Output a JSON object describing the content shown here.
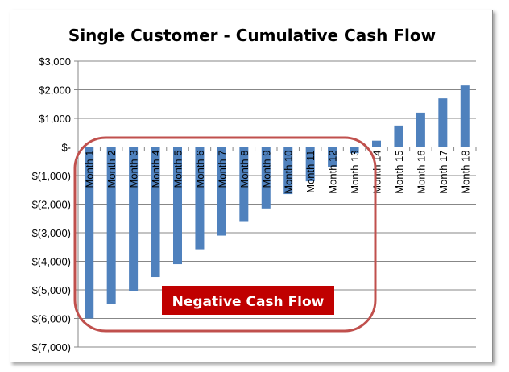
{
  "chart_data": {
    "type": "bar",
    "title": "Single Customer - Cumulative Cash Flow",
    "xlabel": "",
    "ylabel": "",
    "categories": [
      "Month 1",
      "Month 2",
      "Month 3",
      "Month 4",
      "Month 5",
      "Month 6",
      "Month 7",
      "Month 8",
      "Month 9",
      "Month 10",
      "Month 11",
      "Month 12",
      "Month 13",
      "Month 14",
      "Month 15",
      "Month 16",
      "Month 17",
      "Month 18"
    ],
    "values": [
      -6000,
      -5500,
      -5050,
      -4550,
      -4100,
      -3580,
      -3100,
      -2620,
      -2150,
      -1650,
      -1200,
      -700,
      -220,
      220,
      750,
      1200,
      1700,
      2150
    ],
    "ylim": [
      -7000,
      3000
    ],
    "yticks": [
      3000,
      2000,
      1000,
      0,
      -1000,
      -2000,
      -3000,
      -4000,
      -5000,
      -6000,
      -7000
    ],
    "ytick_labels": [
      "$3,000",
      "$2,000",
      "$1,000",
      "$-",
      "$(1,000)",
      "$(2,000)",
      "$(3,000)",
      "$(4,000)",
      "$(5,000)",
      "$(6,000)",
      "$(7,000)"
    ],
    "grid": true,
    "legend": "none",
    "annotation": "Negative Cash Flow"
  },
  "colors": {
    "bar": "#4f81bd",
    "callout_fill": "#c00000",
    "callout_outline": "#c0504d",
    "grid": "#878787"
  }
}
